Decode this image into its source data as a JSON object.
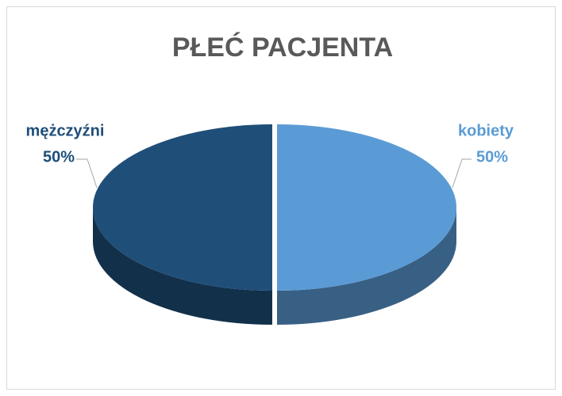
{
  "chart_data": {
    "type": "pie",
    "title": "PŁEĆ PACJENTA",
    "categories": [
      "kobiety",
      "mężczyźni"
    ],
    "values": [
      50,
      50
    ],
    "value_labels": [
      "50%",
      "50%"
    ],
    "colors": [
      "#5b9bd5",
      "#1f4e79"
    ]
  }
}
